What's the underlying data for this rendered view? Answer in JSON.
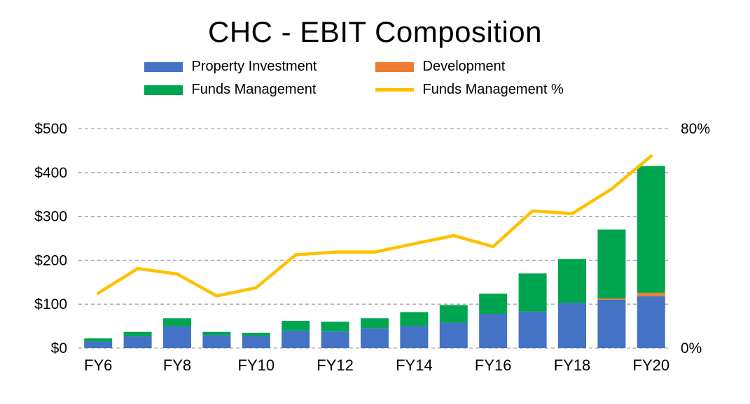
{
  "chart_data": {
    "type": "bar",
    "subtype": "stacked-bar-with-line",
    "title": "CHC - EBIT Composition",
    "categories": [
      "FY6",
      "FY7",
      "FY8",
      "FY9",
      "FY10",
      "FY11",
      "FY12",
      "FY13",
      "FY14",
      "FY15",
      "FY16",
      "FY17",
      "FY18",
      "FY19",
      "FY20"
    ],
    "x_tick_labels": [
      "FY6",
      "FY8",
      "FY10",
      "FY12",
      "FY14",
      "FY16",
      "FY18",
      "FY20"
    ],
    "bar_series": [
      {
        "name": "Property Investment",
        "color": "#4472C4",
        "values": [
          15,
          27,
          50,
          30,
          28,
          40,
          38,
          45,
          50,
          58,
          78,
          83,
          103,
          110,
          118
        ]
      },
      {
        "name": "Development",
        "color": "#ED7D31",
        "values": [
          0,
          0,
          0,
          0,
          0,
          0,
          0,
          0,
          0,
          0,
          0,
          0,
          0,
          3,
          8
        ]
      },
      {
        "name": "Funds Management",
        "color": "#00A550",
        "values": [
          7,
          10,
          18,
          7,
          7,
          22,
          22,
          23,
          32,
          40,
          46,
          87,
          100,
          157,
          289
        ]
      }
    ],
    "line_series": {
      "name": "Funds Management %",
      "color": "#FFC000",
      "axis": "right",
      "values": [
        20,
        29,
        27,
        19,
        22,
        34,
        35,
        35,
        38,
        41,
        37,
        50,
        49,
        58,
        70
      ]
    },
    "left_axis": {
      "min": 0,
      "max": 500,
      "step": 100,
      "tick_labels": [
        "$0",
        "$100",
        "$200",
        "$300",
        "$400",
        "$500"
      ]
    },
    "right_axis": {
      "min": 0,
      "max": 80,
      "tick_values": [
        0,
        80
      ],
      "tick_labels": [
        "0%",
        "80%"
      ]
    },
    "grid": "dashed",
    "grid_color": "#a6a6a6",
    "legend_position": "top"
  }
}
